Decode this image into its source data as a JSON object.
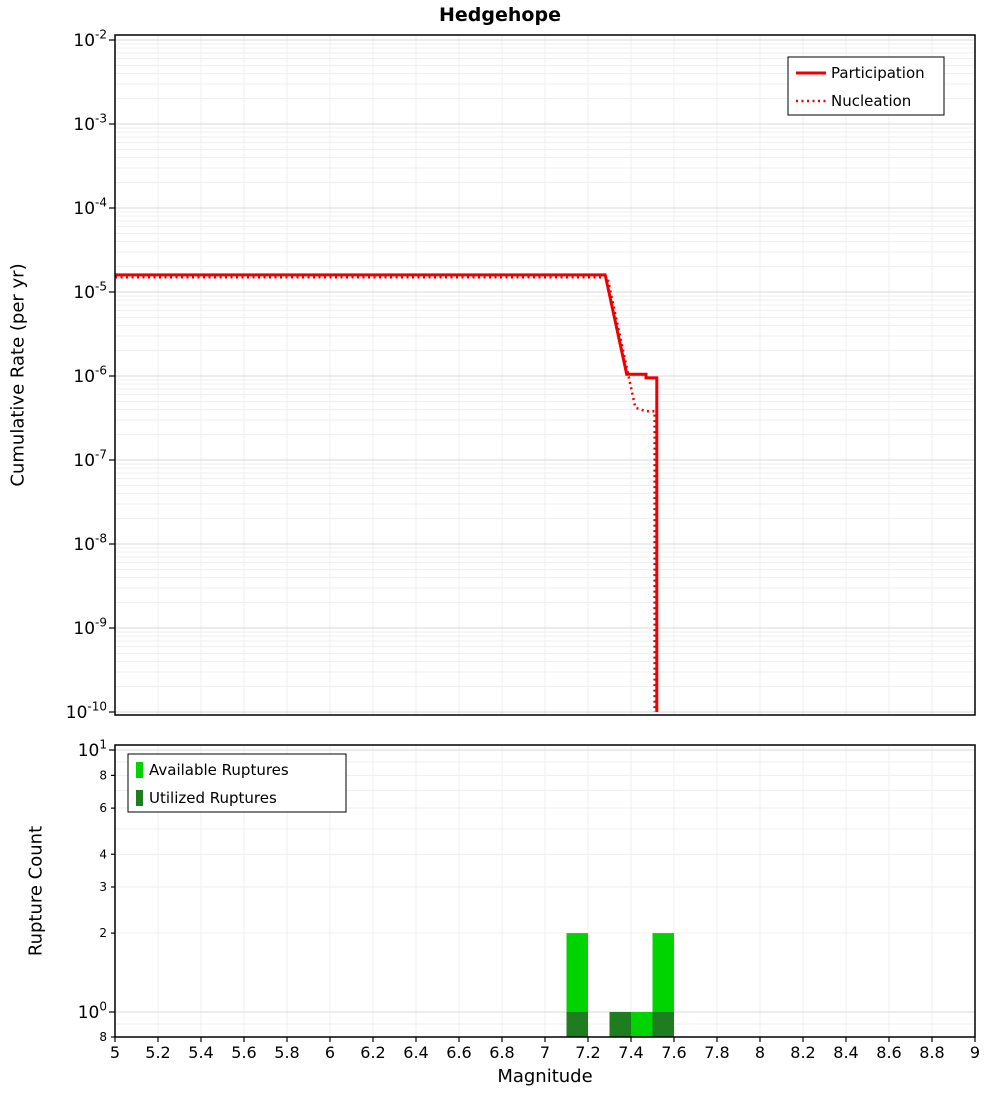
{
  "figure_title": "Hedgehope",
  "colors": {
    "line": "#ee0000",
    "available": "#00d400",
    "utilized": "#1e7d1e",
    "grid_major": "#d9d9d9",
    "grid_minor": "#efefef",
    "frame": "#000000",
    "legend_bg": "#ffffff"
  },
  "axes": {
    "top": {
      "ylabel": "Cumulative Rate (per yr)",
      "y_tick_exponents": [
        -2,
        -3,
        -4,
        -5,
        -6,
        -7,
        -8,
        -9,
        -10
      ]
    },
    "bottom": {
      "ylabel": "Rupture Count",
      "xlabel": "Magnitude",
      "x_tick_labels": [
        "5",
        "5.2",
        "5.4",
        "5.6",
        "5.8",
        "6",
        "6.2",
        "6.4",
        "6.6",
        "6.8",
        "7",
        "7.2",
        "7.4",
        "7.6",
        "7.8",
        "8",
        "8.2",
        "8.4",
        "8.6",
        "8.8",
        "9"
      ],
      "y_major_ticks": [
        {
          "exp": "1",
          "v": 10
        },
        {
          "exp": "0",
          "v": 1
        }
      ],
      "y_minor_tick_labels": [
        {
          "label": "8",
          "v": 8
        },
        {
          "label": "6",
          "v": 6
        },
        {
          "label": "4",
          "v": 4
        },
        {
          "label": "3",
          "v": 3
        },
        {
          "label": "2",
          "v": 2
        },
        {
          "label": "8",
          "v": 0.8
        }
      ]
    }
  },
  "chart_data": [
    {
      "type": "line",
      "title": "Hedgehope",
      "xlabel": "Magnitude",
      "ylabel": "Cumulative Rate (per yr)",
      "xlim": [
        5,
        9
      ],
      "ylim": [
        1e-10,
        0.01
      ],
      "yscale": "log",
      "grid": true,
      "legend_position": "top-right",
      "series": [
        {
          "name": "Participation",
          "style": "solid",
          "color": "#ee0000",
          "width": 3,
          "points": [
            [
              5,
              1.6e-05
            ],
            [
              7.28,
              1.6e-05
            ],
            [
              7.38,
              1.05e-06
            ],
            [
              7.47,
              1.05e-06
            ],
            [
              7.47,
              9.5e-07
            ],
            [
              7.52,
              9.5e-07
            ],
            [
              7.52,
              1e-10
            ]
          ]
        },
        {
          "name": "Nucleation",
          "style": "dotted",
          "color": "#ee0000",
          "width": 2.5,
          "points": [
            [
              5,
              1.5e-05
            ],
            [
              7.29,
              1.5e-05
            ],
            [
              7.42,
              4.2e-07
            ],
            [
              7.47,
              3.8e-07
            ],
            [
              7.51,
              3.8e-07
            ],
            [
              7.51,
              1e-10
            ]
          ]
        }
      ]
    },
    {
      "type": "bar",
      "title": "",
      "xlabel": "Magnitude",
      "ylabel": "Rupture Count",
      "xlim": [
        5,
        9
      ],
      "ylim": [
        0.8,
        10
      ],
      "yscale": "log",
      "grid": true,
      "bar_width": 0.1,
      "legend_position": "top-left",
      "series": [
        {
          "name": "Available Ruptures",
          "color": "#00d400",
          "x": [
            7.15,
            7.35,
            7.45,
            7.55
          ],
          "values": [
            2,
            1,
            1,
            2
          ]
        },
        {
          "name": "Utilized Ruptures",
          "color": "#1e7d1e",
          "x": [
            7.15,
            7.35,
            7.55
          ],
          "values": [
            1,
            1,
            1
          ]
        }
      ]
    }
  ]
}
